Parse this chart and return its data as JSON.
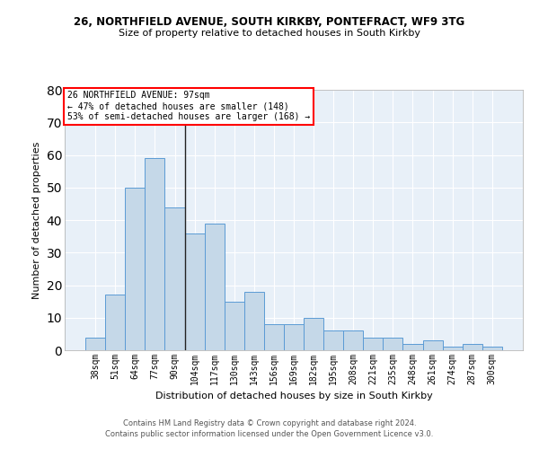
{
  "title1": "26, NORTHFIELD AVENUE, SOUTH KIRKBY, PONTEFRACT, WF9 3TG",
  "title2": "Size of property relative to detached houses in South Kirkby",
  "xlabel": "Distribution of detached houses by size in South Kirkby",
  "ylabel": "Number of detached properties",
  "categories": [
    "38sqm",
    "51sqm",
    "64sqm",
    "77sqm",
    "90sqm",
    "104sqm",
    "117sqm",
    "130sqm",
    "143sqm",
    "156sqm",
    "169sqm",
    "182sqm",
    "195sqm",
    "208sqm",
    "221sqm",
    "235sqm",
    "248sqm",
    "261sqm",
    "274sqm",
    "287sqm",
    "300sqm"
  ],
  "values": [
    4,
    17,
    50,
    59,
    44,
    36,
    39,
    15,
    18,
    8,
    8,
    10,
    6,
    6,
    4,
    4,
    2,
    3,
    1,
    2,
    1
  ],
  "bar_color": "#c5d8e8",
  "bar_edge_color": "#5b9bd5",
  "background_color": "#e8f0f8",
  "ylim": [
    0,
    80
  ],
  "yticks": [
    0,
    10,
    20,
    30,
    40,
    50,
    60,
    70,
    80
  ],
  "prop_sqm": 97,
  "bin_starts": [
    38,
    51,
    64,
    77,
    90,
    104,
    117,
    130,
    143,
    156,
    169,
    182,
    195,
    208,
    221,
    235,
    248,
    261,
    274,
    287,
    300
  ],
  "bin_width": 13,
  "annotation_line1": "26 NORTHFIELD AVENUE: 97sqm",
  "annotation_line2": "← 47% of detached houses are smaller (148)",
  "annotation_line3": "53% of semi-detached houses are larger (168) →",
  "footer1": "Contains HM Land Registry data © Crown copyright and database right 2024.",
  "footer2": "Contains public sector information licensed under the Open Government Licence v3.0."
}
